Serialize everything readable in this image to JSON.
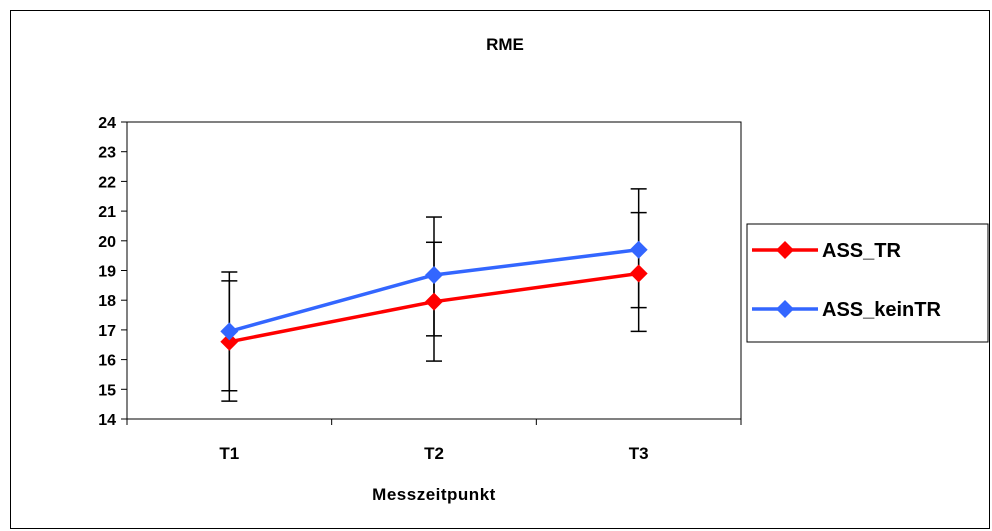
{
  "chart_data": {
    "type": "line",
    "title": "RME",
    "xlabel": "Messzeitpunkt",
    "ylabel": "",
    "categories": [
      "T1",
      "T2",
      "T3"
    ],
    "ylim": [
      14,
      24
    ],
    "yticks": [
      "14",
      "15",
      "16",
      "17",
      "18",
      "19",
      "20",
      "21",
      "22",
      "23",
      "24"
    ],
    "grid": false,
    "legend_position": "right",
    "series": [
      {
        "name": "ASS_TR",
        "color": "#ff0000",
        "values": [
          16.6,
          17.95,
          18.9
        ],
        "error_low": [
          14.6,
          15.95,
          16.95
        ],
        "error_high": [
          18.65,
          19.95,
          20.95
        ]
      },
      {
        "name": "ASS_keinTR",
        "color": "#3366ff",
        "values": [
          16.95,
          18.85,
          19.7
        ],
        "error_low": [
          14.95,
          16.8,
          17.75
        ],
        "error_high": [
          18.95,
          20.8,
          21.75
        ]
      }
    ]
  }
}
